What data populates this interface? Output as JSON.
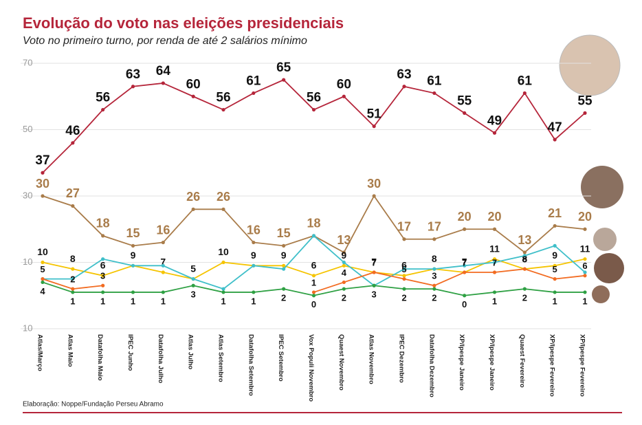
{
  "chart_data": {
    "type": "line",
    "title": "Evolução do voto nas eleições presidenciais",
    "subtitle": "Voto no primeiro turno, por renda de até 2 salários mínimo",
    "source": "Elaboração: Noppe/Fundação Perseu Abramo",
    "categories": [
      "Atlas/Março",
      "Atlas Maio",
      "Datafolha Maio",
      "IPEC Junho",
      "Datafolha Julho",
      "Atlas Julho",
      "Atlas Setembro",
      "Datafolha Setembro",
      "IPEC Setembro",
      "Vox Populi Novembro",
      "Quaest Novembro",
      "Atlas Novembro",
      "IPEC Dezembro",
      "Datafolha Dezembro",
      "XP/Ipespe Janeiro",
      "XP/Ipespe Janeiro",
      "Quaest Fevereiro",
      "XP/Ipespe Fevereiro",
      "XP/Ipespe Fevereiro"
    ],
    "ylim": [
      -10,
      70
    ],
    "yticks": [
      70,
      50,
      30,
      10,
      {
        "value": -10,
        "label": "10"
      }
    ],
    "grid": true,
    "series": [
      {
        "color": "#b5253a",
        "values": [
          37,
          46,
          56,
          63,
          64,
          60,
          56,
          61,
          65,
          56,
          60,
          51,
          63,
          61,
          55,
          49,
          61,
          47,
          55
        ]
      },
      {
        "color": "#a97c4a",
        "values": [
          30,
          27,
          18,
          15,
          16,
          26,
          26,
          16,
          15,
          18,
          13,
          30,
          17,
          17,
          20,
          20,
          13,
          21,
          20
        ]
      },
      {
        "color": "#f5c400",
        "values": [
          10,
          8,
          6,
          9,
          7,
          5,
          10,
          9,
          9,
          6,
          9,
          7,
          6,
          8,
          7,
          11,
          8,
          9,
          11
        ]
      },
      {
        "color": "#3fbfc9",
        "values": [
          5,
          5,
          11,
          9,
          9,
          5,
          2,
          9,
          8,
          18,
          10,
          3,
          8,
          8,
          9,
          10,
          12,
          15,
          7
        ]
      },
      {
        "color": "#f26b21",
        "values": [
          5,
          2,
          3,
          null,
          null,
          null,
          null,
          null,
          null,
          1,
          4,
          7,
          5,
          3,
          7,
          7,
          8,
          5,
          6
        ]
      },
      {
        "color": "#2ea043",
        "values": [
          4,
          1,
          1,
          1,
          1,
          3,
          1,
          1,
          2,
          0,
          2,
          3,
          2,
          2,
          0,
          1,
          2,
          1,
          1
        ]
      }
    ]
  }
}
